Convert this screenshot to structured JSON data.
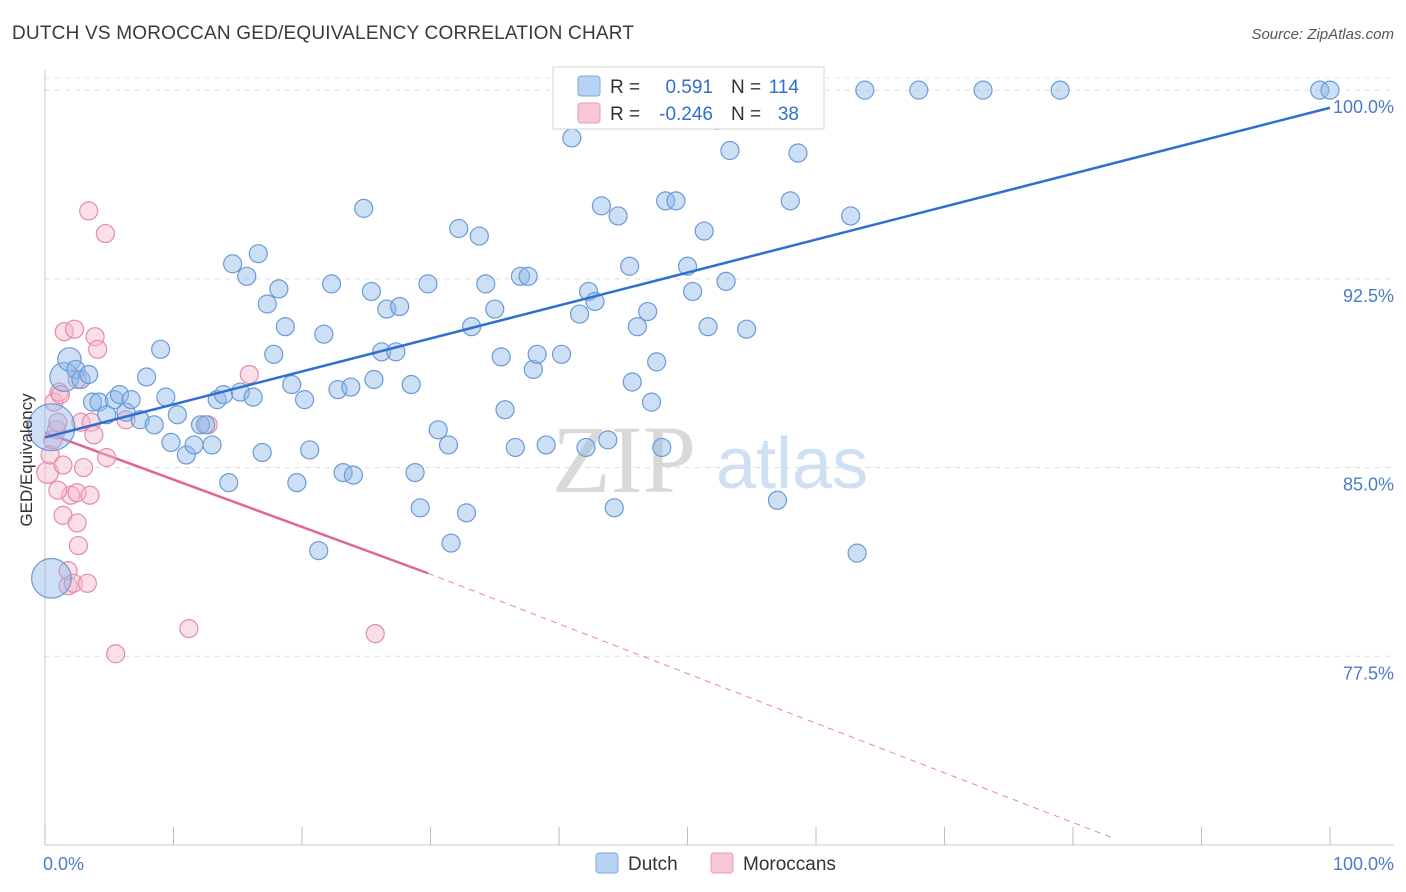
{
  "title": "DUTCH VS MOROCCAN GED/EQUIVALENCY CORRELATION CHART",
  "source": "Source: ZipAtlas.com",
  "watermark": {
    "zip": "ZIP",
    "atlas": "atlas"
  },
  "chart_data": {
    "type": "scatter",
    "xlabel": "",
    "ylabel": "GED/Equivalency",
    "xlim": [
      0,
      100
    ],
    "ylim": [
      70.0,
      100.8
    ],
    "x_tick_labels": [
      {
        "value": 0,
        "label": "0.0%"
      },
      {
        "value": 100,
        "label": "100.0%"
      }
    ],
    "x_minor_ticks": [
      0,
      10,
      20,
      30,
      40,
      50,
      60,
      70,
      80,
      90,
      100
    ],
    "y_ticks": [
      {
        "value": 100.0,
        "label": "100.0%"
      },
      {
        "value": 92.5,
        "label": "92.5%"
      },
      {
        "value": 85.0,
        "label": "85.0%"
      },
      {
        "value": 77.5,
        "label": "77.5%"
      }
    ],
    "grid": true,
    "legend": {
      "position": "top-center",
      "rows": [
        {
          "series": "Dutch",
          "r_label": "R =",
          "r_value": "0.591",
          "n_label": "N =",
          "n_value": "114"
        },
        {
          "series": "Moroccans",
          "r_label": "R =",
          "r_value": "-0.246",
          "n_label": "N =",
          "n_value": "38"
        }
      ]
    },
    "series": [
      {
        "name": "Dutch",
        "color": "#8fb8e8",
        "stroke": "#6a9bd6",
        "trend": {
          "x": [
            0.0,
            100.0
          ],
          "y": [
            86.2,
            99.3
          ],
          "color": "#2f6fd0"
        },
        "points": [
          [
            0.5,
            86.6,
            2.6
          ],
          [
            0.5,
            80.6,
            2.2
          ],
          [
            1.5,
            88.6,
            1.6
          ],
          [
            1.9,
            89.3,
            1.3
          ],
          [
            2.4,
            88.9,
            1.0
          ],
          [
            2.8,
            88.5,
            1.0
          ],
          [
            3.4,
            88.7,
            1.0
          ],
          [
            3.7,
            87.6,
            1.0
          ],
          [
            4.2,
            87.6,
            1.0
          ],
          [
            4.8,
            87.1,
            1.0
          ],
          [
            5.4,
            87.7,
            1.0
          ],
          [
            5.8,
            87.9,
            1.0
          ],
          [
            6.3,
            87.2,
            1.0
          ],
          [
            6.7,
            87.7,
            1.0
          ],
          [
            7.4,
            86.9,
            1.0
          ],
          [
            7.9,
            88.6,
            1.0
          ],
          [
            8.5,
            86.7,
            1.0
          ],
          [
            9.0,
            89.7,
            1.0
          ],
          [
            9.4,
            87.8,
            1.0
          ],
          [
            10.3,
            87.1,
            1.0
          ],
          [
            9.8,
            86.0,
            1.0
          ],
          [
            11.0,
            85.5,
            1.0
          ],
          [
            11.6,
            85.9,
            1.0
          ],
          [
            12.1,
            86.7,
            1.0
          ],
          [
            12.5,
            86.7,
            1.0
          ],
          [
            13.0,
            85.9,
            1.0
          ],
          [
            13.4,
            87.7,
            1.0
          ],
          [
            13.9,
            87.9,
            1.0
          ],
          [
            14.3,
            84.4,
            1.0
          ],
          [
            14.6,
            93.1,
            1.0
          ],
          [
            15.2,
            88.0,
            1.0
          ],
          [
            15.7,
            92.6,
            1.0
          ],
          [
            16.2,
            87.8,
            1.0
          ],
          [
            16.6,
            93.5,
            1.0
          ],
          [
            16.9,
            85.6,
            1.0
          ],
          [
            17.3,
            91.5,
            1.0
          ],
          [
            17.8,
            89.5,
            1.0
          ],
          [
            18.2,
            92.1,
            1.0
          ],
          [
            18.7,
            90.6,
            1.0
          ],
          [
            19.2,
            88.3,
            1.0
          ],
          [
            19.6,
            84.4,
            1.0
          ],
          [
            20.2,
            87.7,
            1.0
          ],
          [
            20.6,
            85.7,
            1.0
          ],
          [
            21.3,
            81.7,
            1.0
          ],
          [
            21.7,
            90.3,
            1.0
          ],
          [
            22.3,
            92.3,
            1.0
          ],
          [
            22.8,
            88.1,
            1.0
          ],
          [
            23.2,
            84.8,
            1.0
          ],
          [
            23.8,
            88.2,
            1.0
          ],
          [
            24.0,
            84.7,
            1.0
          ],
          [
            24.8,
            95.3,
            1.0
          ],
          [
            25.4,
            92.0,
            1.0
          ],
          [
            25.6,
            88.5,
            1.0
          ],
          [
            26.2,
            89.6,
            1.0
          ],
          [
            26.6,
            91.3,
            1.0
          ],
          [
            27.3,
            89.6,
            1.0
          ],
          [
            27.6,
            91.4,
            1.0
          ],
          [
            28.5,
            88.3,
            1.0
          ],
          [
            28.8,
            84.8,
            1.0
          ],
          [
            29.2,
            83.4,
            1.0
          ],
          [
            29.8,
            92.3,
            1.0
          ],
          [
            30.6,
            86.5,
            1.0
          ],
          [
            31.4,
            85.9,
            1.0
          ],
          [
            31.6,
            82.0,
            1.0
          ],
          [
            32.2,
            94.5,
            1.0
          ],
          [
            32.8,
            83.2,
            1.0
          ],
          [
            33.2,
            90.6,
            1.0
          ],
          [
            33.8,
            94.2,
            1.0
          ],
          [
            34.3,
            92.3,
            1.0
          ],
          [
            35.0,
            91.3,
            1.0
          ],
          [
            35.5,
            89.4,
            1.0
          ],
          [
            35.8,
            87.3,
            1.0
          ],
          [
            36.6,
            85.8,
            1.0
          ],
          [
            37.0,
            92.6,
            1.0
          ],
          [
            37.6,
            92.6,
            1.0
          ],
          [
            38.0,
            88.9,
            1.0
          ],
          [
            38.3,
            89.5,
            1.0
          ],
          [
            39.0,
            85.9,
            1.0
          ],
          [
            40.2,
            89.5,
            1.0
          ],
          [
            41.0,
            98.1,
            1.0
          ],
          [
            41.6,
            91.1,
            1.0
          ],
          [
            42.1,
            85.8,
            1.0
          ],
          [
            42.3,
            92.0,
            1.0
          ],
          [
            42.8,
            91.6,
            1.0
          ],
          [
            43.3,
            95.4,
            1.0
          ],
          [
            43.8,
            86.1,
            1.0
          ],
          [
            44.3,
            83.4,
            1.0
          ],
          [
            44.6,
            95.0,
            1.0
          ],
          [
            45.5,
            93.0,
            1.0
          ],
          [
            45.7,
            88.4,
            1.0
          ],
          [
            46.1,
            90.6,
            1.0
          ],
          [
            46.9,
            91.2,
            1.0
          ],
          [
            47.2,
            87.6,
            1.0
          ],
          [
            47.6,
            89.2,
            1.0
          ],
          [
            48.0,
            85.8,
            1.0
          ],
          [
            48.3,
            95.6,
            1.0
          ],
          [
            49.1,
            95.6,
            1.0
          ],
          [
            49.3,
            100.0,
            1.0
          ],
          [
            50.0,
            93.0,
            1.0
          ],
          [
            50.4,
            92.0,
            1.0
          ],
          [
            51.3,
            94.4,
            1.0
          ],
          [
            51.6,
            90.6,
            1.0
          ],
          [
            52.3,
            98.8,
            1.0
          ],
          [
            53.0,
            92.4,
            1.0
          ],
          [
            53.3,
            97.6,
            1.0
          ],
          [
            54.6,
            90.5,
            1.0
          ],
          [
            57.0,
            83.7,
            1.0
          ],
          [
            58.0,
            95.6,
            1.0
          ],
          [
            58.6,
            97.5,
            1.0
          ],
          [
            62.7,
            95.0,
            1.0
          ],
          [
            63.2,
            81.6,
            1.0
          ],
          [
            63.8,
            100.0,
            1.0
          ],
          [
            68.0,
            100.0,
            1.0
          ],
          [
            73.0,
            100.0,
            1.0
          ],
          [
            79.0,
            100.0,
            1.0
          ],
          [
            99.2,
            100.0,
            1.0
          ],
          [
            100.0,
            100.0,
            1.0
          ]
        ]
      },
      {
        "name": "Moroccans",
        "color": "#f4b8cc",
        "stroke": "#e58aa8",
        "trend": {
          "x": [
            0.0,
            29.8
          ],
          "y": [
            86.4,
            80.8
          ],
          "color": "#e06794",
          "dash_extension": {
            "x": [
              29.8,
              83.0
            ],
            "y": [
              80.8,
              70.3
            ]
          }
        },
        "points": [
          [
            0.2,
            84.8,
            1.2
          ],
          [
            0.4,
            85.5,
            1.0
          ],
          [
            0.6,
            86.1,
            1.0
          ],
          [
            0.7,
            87.6,
            1.0
          ],
          [
            0.9,
            86.5,
            1.0
          ],
          [
            1.1,
            88.0,
            1.0
          ],
          [
            1.2,
            87.9,
            1.0
          ],
          [
            1.4,
            85.1,
            1.0
          ],
          [
            1.4,
            83.1,
            1.0
          ],
          [
            1.5,
            90.4,
            1.0
          ],
          [
            1.8,
            80.3,
            1.0
          ],
          [
            1.8,
            80.9,
            1.0
          ],
          [
            2.0,
            83.9,
            1.0
          ],
          [
            2.2,
            80.4,
            1.0
          ],
          [
            2.3,
            90.5,
            1.0
          ],
          [
            2.5,
            88.5,
            1.0
          ],
          [
            2.5,
            84.0,
            1.0
          ],
          [
            2.5,
            82.8,
            1.0
          ],
          [
            2.6,
            81.9,
            1.0
          ],
          [
            2.8,
            86.8,
            1.0
          ],
          [
            3.0,
            85.0,
            1.0
          ],
          [
            3.3,
            80.4,
            1.0
          ],
          [
            3.4,
            95.2,
            1.0
          ],
          [
            3.5,
            83.9,
            1.0
          ],
          [
            3.6,
            86.8,
            1.0
          ],
          [
            3.8,
            86.3,
            1.0
          ],
          [
            3.9,
            90.2,
            1.0
          ],
          [
            4.1,
            89.7,
            1.0
          ],
          [
            4.7,
            94.3,
            1.0
          ],
          [
            4.8,
            85.4,
            1.0
          ],
          [
            5.5,
            77.6,
            1.0
          ],
          [
            6.3,
            86.9,
            1.0
          ],
          [
            11.2,
            78.6,
            1.0
          ],
          [
            12.7,
            86.7,
            1.0
          ],
          [
            15.9,
            88.7,
            1.0
          ],
          [
            25.7,
            78.4,
            1.0
          ],
          [
            1.0,
            86.8,
            1.0
          ],
          [
            1.0,
            84.1,
            1.0
          ]
        ]
      }
    ]
  }
}
